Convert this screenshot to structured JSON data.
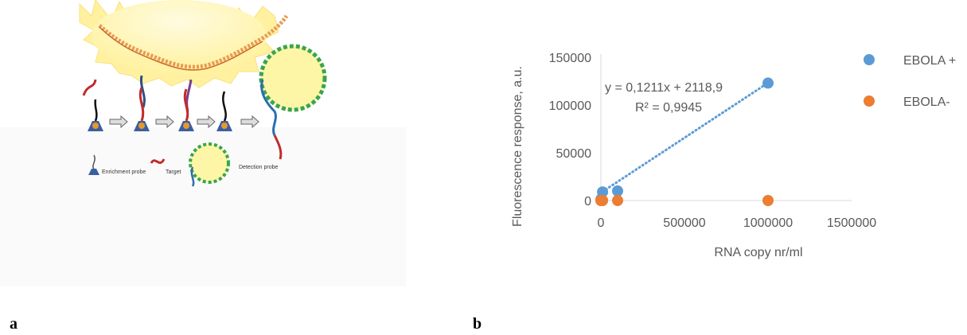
{
  "panel_a": {
    "letter": "a",
    "legend": {
      "enrichment_probe": "Enrichment probe",
      "target": "Target",
      "detection_probe": "Detection probe"
    }
  },
  "panel_b": {
    "letter": "b"
  },
  "chart_data": {
    "type": "scatter",
    "xlabel": "RNA copy nr/ml",
    "ylabel": "Fluorescence response, a.u.",
    "xlim": [
      0,
      1500000
    ],
    "ylim": [
      0,
      150000
    ],
    "x_ticks": [
      0,
      500000,
      1000000,
      1500000
    ],
    "y_ticks": [
      0,
      50000,
      100000,
      150000
    ],
    "x_tick_labels": [
      "0",
      "500000",
      "1000000",
      "1500000"
    ],
    "y_tick_labels": [
      "0",
      "50000",
      "100000",
      "150000"
    ],
    "grid": false,
    "legend_position": "right",
    "series": [
      {
        "name": "EBOLA +",
        "color": "#5b9bd5",
        "points": [
          [
            0,
            1000
          ],
          [
            1000,
            1500
          ],
          [
            10000,
            9000
          ],
          [
            100000,
            10000
          ],
          [
            1000000,
            123000
          ]
        ]
      },
      {
        "name": "EBOLA-",
        "color": "#ed7d31",
        "points": [
          [
            0,
            0
          ],
          [
            1000,
            0
          ],
          [
            10000,
            0
          ],
          [
            100000,
            0
          ],
          [
            1000000,
            0
          ]
        ]
      }
    ],
    "trendline": {
      "series": "EBOLA +",
      "style": "dotted",
      "color": "#5b9bd5",
      "equation": "y = 0,1211x + 2118,9",
      "r_squared": "R² = 0,9945",
      "slope": 0.1211,
      "intercept": 2118.9,
      "x_range": [
        0,
        1000000
      ]
    }
  }
}
